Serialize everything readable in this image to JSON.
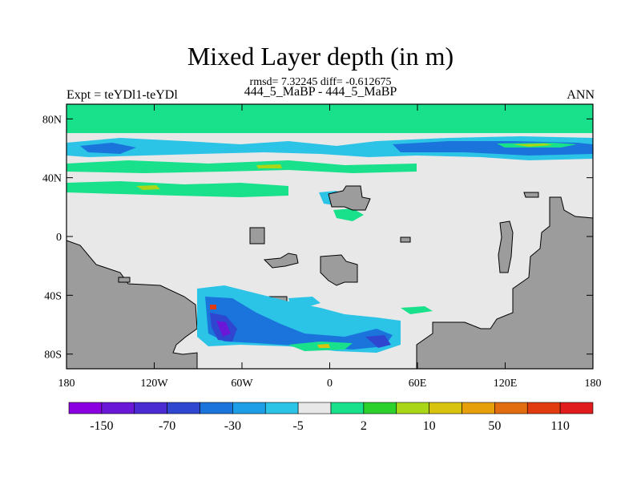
{
  "title": "Mixed Layer depth (in m)",
  "stats": "rmsd= 7.32245 diff= -0.612675",
  "subtitle": "444_5_MaBP - 444_5_MaBP",
  "left_label": "Expt = teYDl1-teYDl",
  "right_label": "ANN",
  "map": {
    "lat_ticks": [
      {
        "label": "80N",
        "value": 80
      },
      {
        "label": "40N",
        "value": 40
      },
      {
        "label": "0",
        "value": 0
      },
      {
        "label": "40S",
        "value": -40
      },
      {
        "label": "80S",
        "value": -80
      }
    ],
    "lon_ticks": [
      {
        "label": "180",
        "value": -180
      },
      {
        "label": "120W",
        "value": -120
      },
      {
        "label": "60W",
        "value": -60
      },
      {
        "label": "0",
        "value": 0
      },
      {
        "label": "60E",
        "value": 60
      },
      {
        "label": "120E",
        "value": 120
      },
      {
        "label": "180",
        "value": 180
      }
    ],
    "lat_range": [
      -90,
      90
    ],
    "lon_range": [
      -180,
      180
    ]
  },
  "colorbar": {
    "colors": [
      "#8a00e0",
      "#6a17d8",
      "#4b2bd2",
      "#2f47d0",
      "#1a74dc",
      "#1f9ee8",
      "#2bc4e6",
      "#e8e8e8",
      "#19e08a",
      "#2cd12c",
      "#a9d616",
      "#d8c40e",
      "#e6a00a",
      "#e26d10",
      "#e03c10",
      "#e01c1c"
    ],
    "labels": [
      "-150",
      "-70",
      "-30",
      "-5",
      "2",
      "10",
      "50",
      "110"
    ]
  },
  "colors": {
    "land": "#9c9c9c",
    "ocean_neutral": "#e8e8e8"
  }
}
